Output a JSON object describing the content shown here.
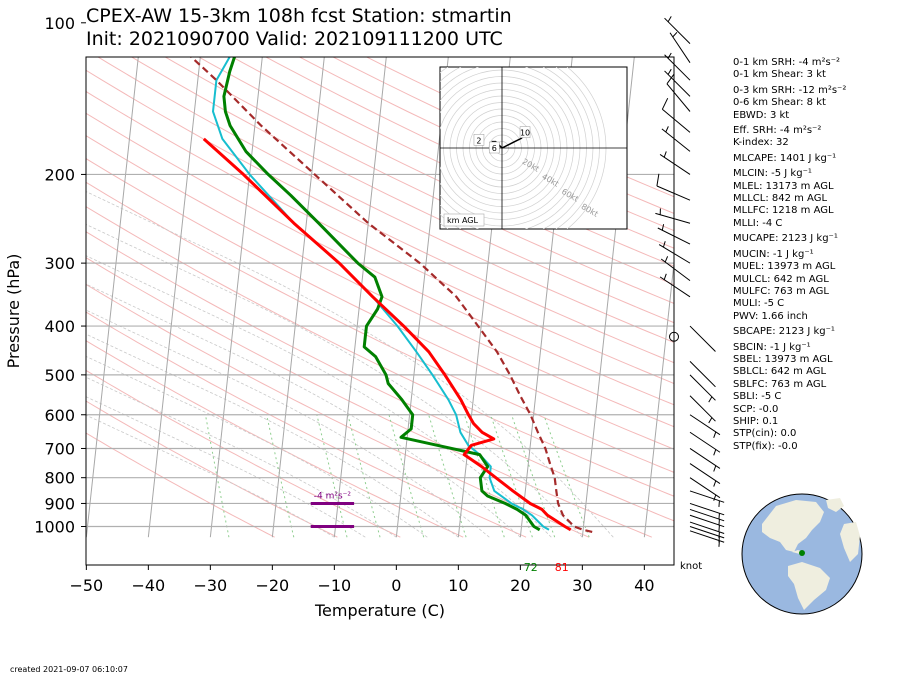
{
  "title": {
    "line1": "CPEX-AW 15-3km  108h fcst  Station: stmartin",
    "line2": "Init: 2021090700  Valid: 202109111200 UTC"
  },
  "footer": "created 2021-09-07 06:10:07",
  "params": [
    {
      "text": "0-1 km SRH: -4 m²s⁻²",
      "gap": false
    },
    {
      "text": "0-1 km Shear: 3 kt",
      "gap": false
    },
    {
      "text": "0-3 km SRH: -12 m²s⁻²",
      "gap": true
    },
    {
      "text": "0-6 km Shear: 8 kt",
      "gap": false
    },
    {
      "text": "EBWD: 3 kt",
      "gap": false
    },
    {
      "text": "Eff. SRH: -4 m²s⁻²",
      "gap": true
    },
    {
      "text": "K-index: 32",
      "gap": false
    },
    {
      "text": "MLCAPE: 1401 J kg⁻¹",
      "gap": true
    },
    {
      "text": "MLCIN: -5 J kg⁻¹",
      "gap": true
    },
    {
      "text": "MLEL: 13173 m AGL",
      "gap": false
    },
    {
      "text": "MLLCL: 842 m AGL",
      "gap": false
    },
    {
      "text": "MLLFC: 1218 m AGL",
      "gap": false
    },
    {
      "text": "MLLI: -4 C",
      "gap": false
    },
    {
      "text": "MUCAPE: 2123 J kg⁻¹",
      "gap": true
    },
    {
      "text": "MUCIN: -1 J kg⁻¹",
      "gap": true
    },
    {
      "text": "MUEL: 13973 m AGL",
      "gap": false
    },
    {
      "text": "MULCL: 642 m AGL",
      "gap": false
    },
    {
      "text": "MULFC: 763 m AGL",
      "gap": false
    },
    {
      "text": "MULI: -5 C",
      "gap": false
    },
    {
      "text": "PWV: 1.66 inch",
      "gap": false
    },
    {
      "text": "SBCAPE: 2123 J kg⁻¹",
      "gap": true
    },
    {
      "text": "SBCIN: -1 J kg⁻¹",
      "gap": true
    },
    {
      "text": "SBEL: 13973 m AGL",
      "gap": false
    },
    {
      "text": "SBLCL: 642 m AGL",
      "gap": false
    },
    {
      "text": "SBLFC: 763 m AGL",
      "gap": false
    },
    {
      "text": "SBLI: -5 C",
      "gap": false
    },
    {
      "text": "SCP: -0.0",
      "gap": false
    },
    {
      "text": "SHIP: 0.1",
      "gap": false
    },
    {
      "text": "STP(cin): 0.0",
      "gap": false
    },
    {
      "text": "STP(fix): -0.0",
      "gap": false
    }
  ],
  "colors": {
    "temperature": "#ff0000",
    "dewpoint": "#008000",
    "wetbulb": "#17becf",
    "parcel": "#a52a2a",
    "isobar": "#b0b0b0",
    "dry_adiabat": "#f4b9b9",
    "mixing_ratio": "#8fce8f",
    "srh_marker": "#800080",
    "hodograph": "#000000",
    "globe_ocean": "#9ab8e0",
    "globe_land": "#efeedf"
  },
  "chart_data": {
    "type": "line",
    "chart_kind": "skew-T log-P diagram",
    "xlabel": "Temperature (C)",
    "ylabel": "Pressure (hPa)",
    "xlim": [
      -50,
      45
    ],
    "ylim": [
      1050,
      100
    ],
    "y_scale": "log",
    "x_ticks": [
      -50,
      -40,
      -30,
      -20,
      -10,
      0,
      10,
      20,
      30,
      40
    ],
    "y_ticks": [
      100,
      200,
      300,
      400,
      500,
      600,
      700,
      800,
      900,
      1000
    ],
    "series": [
      {
        "key": "temperature",
        "points": [
          [
            1015,
            28
          ],
          [
            1000,
            27
          ],
          [
            950,
            24
          ],
          [
            925,
            23
          ],
          [
            900,
            21
          ],
          [
            850,
            18
          ],
          [
            800,
            15
          ],
          [
            760,
            12.5
          ],
          [
            720,
            9.5
          ],
          [
            690,
            10.5
          ],
          [
            670,
            14
          ],
          [
            650,
            12
          ],
          [
            625,
            10.5
          ],
          [
            600,
            9.5
          ],
          [
            560,
            8
          ],
          [
            500,
            5
          ],
          [
            450,
            2
          ],
          [
            400,
            -2.5
          ],
          [
            350,
            -8
          ],
          [
            300,
            -14
          ],
          [
            250,
            -22
          ],
          [
            200,
            -31
          ],
          [
            170,
            -38
          ]
        ]
      },
      {
        "key": "dewpoint",
        "points": [
          [
            1015,
            23
          ],
          [
            1000,
            22
          ],
          [
            950,
            20.5
          ],
          [
            925,
            19
          ],
          [
            900,
            17
          ],
          [
            870,
            14
          ],
          [
            850,
            13
          ],
          [
            800,
            12.5
          ],
          [
            760,
            13.5
          ],
          [
            720,
            12
          ],
          [
            690,
            5
          ],
          [
            665,
            -1
          ],
          [
            640,
            0.5
          ],
          [
            600,
            0.5
          ],
          [
            560,
            -1.5
          ],
          [
            520,
            -4
          ],
          [
            500,
            -4.5
          ],
          [
            460,
            -6.5
          ],
          [
            440,
            -8.5
          ],
          [
            420,
            -8.5
          ],
          [
            400,
            -8.5
          ],
          [
            370,
            -7
          ],
          [
            350,
            -6.5
          ],
          [
            320,
            -8
          ],
          [
            300,
            -11
          ],
          [
            250,
            -18
          ],
          [
            220,
            -23
          ],
          [
            200,
            -27
          ],
          [
            180,
            -31
          ],
          [
            160,
            -34
          ],
          [
            150,
            -35
          ],
          [
            140,
            -35.5
          ],
          [
            125,
            -35
          ],
          [
            110,
            -34
          ],
          [
            100,
            -33
          ]
        ]
      },
      {
        "key": "wetbulb",
        "points": [
          [
            1015,
            24.5
          ],
          [
            1000,
            23.5
          ],
          [
            950,
            21.5
          ],
          [
            925,
            20
          ],
          [
            900,
            18
          ],
          [
            850,
            15
          ],
          [
            800,
            14
          ],
          [
            760,
            14
          ],
          [
            720,
            12
          ],
          [
            690,
            10
          ],
          [
            650,
            8.5
          ],
          [
            600,
            7.5
          ],
          [
            560,
            6
          ],
          [
            500,
            3
          ],
          [
            450,
            0
          ],
          [
            400,
            -3.5
          ],
          [
            350,
            -8
          ],
          [
            300,
            -14
          ],
          [
            250,
            -22
          ],
          [
            200,
            -30
          ],
          [
            170,
            -35
          ],
          [
            150,
            -37
          ],
          [
            130,
            -37
          ],
          [
            115,
            -35
          ],
          [
            100,
            -31
          ]
        ]
      },
      {
        "key": "parcel",
        "dashed": true,
        "points": [
          [
            1025,
            31.5
          ],
          [
            1015,
            30
          ],
          [
            1000,
            28.5
          ],
          [
            950,
            26.5
          ],
          [
            900,
            25.5
          ],
          [
            850,
            25
          ],
          [
            800,
            24.5
          ],
          [
            750,
            23.5
          ],
          [
            700,
            22.5
          ],
          [
            650,
            21
          ],
          [
            600,
            19.5
          ],
          [
            550,
            17.5
          ],
          [
            500,
            15.5
          ],
          [
            450,
            13
          ],
          [
            400,
            9.5
          ],
          [
            350,
            5.5
          ],
          [
            300,
            -1
          ],
          [
            250,
            -10
          ],
          [
            200,
            -19.5
          ],
          [
            160,
            -29
          ],
          [
            130,
            -37
          ],
          [
            110,
            -44
          ],
          [
            100,
            -48
          ]
        ]
      }
    ],
    "surface_labels": [
      {
        "text": "72",
        "series": "dewpoint"
      },
      {
        "text": "81",
        "series": "temperature"
      }
    ],
    "srh_marker": {
      "label": "-4 m²s⁻²",
      "p_top": 900,
      "p_bottom": 1000,
      "t_range": [
        -14,
        -7
      ]
    },
    "wind_unit": "knot",
    "wind_barbs": [
      {
        "p": 1020,
        "u": -3,
        "v": 1
      },
      {
        "p": 1000,
        "u": -3,
        "v": 1
      },
      {
        "p": 980,
        "u": -3,
        "v": 1
      },
      {
        "p": 950,
        "u": -3,
        "v": 1
      },
      {
        "p": 925,
        "u": -3,
        "v": 1
      },
      {
        "p": 900,
        "u": -3,
        "v": 1
      },
      {
        "p": 850,
        "u": -3,
        "v": 1
      },
      {
        "p": 800,
        "u": -3,
        "v": 2
      },
      {
        "p": 750,
        "u": -3,
        "v": 2
      },
      {
        "p": 700,
        "u": -3,
        "v": 2
      },
      {
        "p": 650,
        "u": -3,
        "v": 2
      },
      {
        "p": 600,
        "u": -3,
        "v": 2
      },
      {
        "p": 550,
        "u": -2,
        "v": 2
      },
      {
        "p": 500,
        "u": -2,
        "v": 2
      },
      {
        "p": 470,
        "u": -1,
        "v": 1
      },
      {
        "p": 420,
        "u": 0,
        "v": 0
      },
      {
        "p": 400,
        "u": -1,
        "v": 1
      },
      {
        "p": 350,
        "u": 3,
        "v": -2
      },
      {
        "p": 325,
        "u": 4,
        "v": -3
      },
      {
        "p": 300,
        "u": 5,
        "v": -3
      },
      {
        "p": 275,
        "u": 6,
        "v": -3
      },
      {
        "p": 250,
        "u": 7,
        "v": -2
      },
      {
        "p": 225,
        "u": 7,
        "v": -3
      },
      {
        "p": 200,
        "u": 6,
        "v": -4
      },
      {
        "p": 180,
        "u": 5,
        "v": -4
      },
      {
        "p": 165,
        "u": 6,
        "v": -5
      },
      {
        "p": 150,
        "u": 5,
        "v": -6
      },
      {
        "p": 140,
        "u": 5,
        "v": -5
      },
      {
        "p": 130,
        "u": 5,
        "v": -5
      },
      {
        "p": 120,
        "u": 4,
        "v": -6
      },
      {
        "p": 110,
        "u": 5,
        "v": -5
      }
    ],
    "hodograph": {
      "label": "km AGL",
      "ring_labels": [
        "20kt",
        "40kt",
        "60kt",
        "80kt"
      ],
      "height_labels": [
        "2",
        "6",
        "10"
      ],
      "trace": [
        [
          -3,
          1
        ],
        [
          -3,
          2
        ],
        [
          -2,
          2
        ],
        [
          -1,
          1
        ],
        [
          0,
          0
        ],
        [
          2,
          1
        ],
        [
          4,
          2
        ],
        [
          6,
          3
        ],
        [
          7,
          4
        ],
        [
          8,
          5
        ]
      ]
    }
  }
}
